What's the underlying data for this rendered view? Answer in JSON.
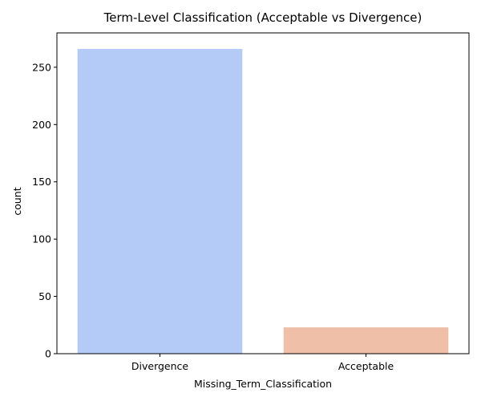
{
  "chart_data": {
    "type": "bar",
    "title": "Term-Level Classification (Acceptable vs Divergence)",
    "xlabel": "Missing_Term_Classification",
    "ylabel": "count",
    "categories": [
      "Divergence",
      "Acceptable"
    ],
    "values": [
      266,
      23
    ],
    "colors": [
      "#b3cbf6",
      "#efbfa8"
    ],
    "ylim": [
      0,
      280
    ],
    "yticks": [
      0,
      50,
      100,
      150,
      200,
      250
    ],
    "grid": false,
    "legend": "none"
  }
}
